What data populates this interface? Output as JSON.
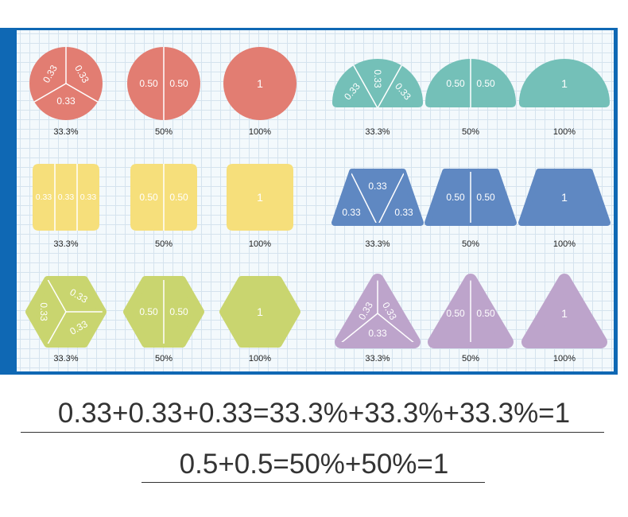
{
  "colors": {
    "red": "#e27d72",
    "teal": "#74c0b8",
    "yellow": "#f6df7b",
    "blue": "#5f88c2",
    "green": "#c9d56f",
    "purple": "#bda4cb",
    "board": "#0f68b4"
  },
  "shapes": [
    {
      "shape": "circle",
      "color": "#e27d72",
      "parts": [
        "0.33",
        "0.33",
        "0.33"
      ],
      "caption": "33.3%"
    },
    {
      "shape": "circle",
      "color": "#e27d72",
      "parts": [
        "0.50",
        "0.50"
      ],
      "caption": "50%"
    },
    {
      "shape": "circle",
      "color": "#e27d72",
      "parts": [
        "1"
      ],
      "caption": "100%"
    },
    {
      "shape": "semicircle",
      "color": "#74c0b8",
      "parts": [
        "0.33",
        "0.33",
        "0.33"
      ],
      "caption": "33.3%"
    },
    {
      "shape": "semicircle",
      "color": "#74c0b8",
      "parts": [
        "0.50",
        "0.50"
      ],
      "caption": "50%"
    },
    {
      "shape": "semicircle",
      "color": "#74c0b8",
      "parts": [
        "1"
      ],
      "caption": "100%"
    },
    {
      "shape": "square",
      "color": "#f6df7b",
      "parts": [
        "0.33",
        "0.33",
        "0.33"
      ],
      "caption": "33.3%"
    },
    {
      "shape": "square",
      "color": "#f6df7b",
      "parts": [
        "0.50",
        "0.50"
      ],
      "caption": "50%"
    },
    {
      "shape": "square",
      "color": "#f6df7b",
      "parts": [
        "1"
      ],
      "caption": "100%"
    },
    {
      "shape": "trapezoid",
      "color": "#5f88c2",
      "parts": [
        "0.33",
        "0.33",
        "0.33"
      ],
      "caption": "33.3%"
    },
    {
      "shape": "trapezoid",
      "color": "#5f88c2",
      "parts": [
        "0.50",
        "0.50"
      ],
      "caption": "50%"
    },
    {
      "shape": "trapezoid",
      "color": "#5f88c2",
      "parts": [
        "1"
      ],
      "caption": "100%"
    },
    {
      "shape": "hexagon",
      "color": "#c9d56f",
      "parts": [
        "0.33",
        "0.33",
        "0.33"
      ],
      "caption": "33.3%"
    },
    {
      "shape": "hexagon",
      "color": "#c9d56f",
      "parts": [
        "0.50",
        "0.50"
      ],
      "caption": "50%"
    },
    {
      "shape": "hexagon",
      "color": "#c9d56f",
      "parts": [
        "1"
      ],
      "caption": "100%"
    },
    {
      "shape": "triangle",
      "color": "#bda4cb",
      "parts": [
        "0.33",
        "0.33",
        "0.33"
      ],
      "caption": "33.3%"
    },
    {
      "shape": "triangle",
      "color": "#bda4cb",
      "parts": [
        "0.50",
        "0.50"
      ],
      "caption": "50%"
    },
    {
      "shape": "triangle",
      "color": "#bda4cb",
      "parts": [
        "1"
      ],
      "caption": "100%"
    }
  ],
  "equations": [
    "0.33+0.33+0.33=33.3%+33.3%+33.3%=1",
    "0.5+0.5=50%+50%=1"
  ]
}
